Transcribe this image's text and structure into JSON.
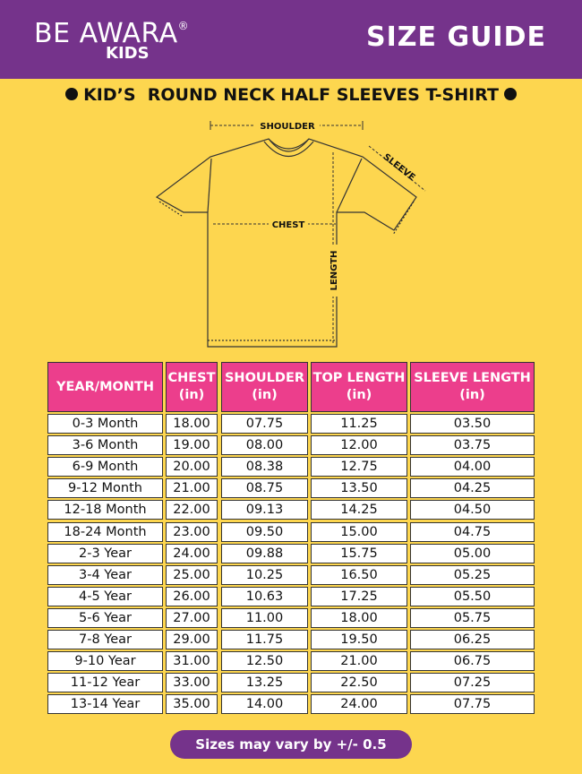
{
  "header": {
    "brand": "BE AWARA",
    "registered": "®",
    "brand_sub": "KIDS",
    "title": "SIZE GUIDE"
  },
  "subtitle": "KID’S  ROUND NECK HALF SLEEVES T-SHIRT",
  "diagram": {
    "shoulder": "SHOULDER",
    "sleeve": "SLEEVE",
    "chest": "CHEST",
    "length": "LENGTH"
  },
  "table": {
    "headers": [
      [
        "YEAR/MONTH",
        ""
      ],
      [
        "CHEST",
        "(in)"
      ],
      [
        "SHOULDER",
        "(in)"
      ],
      [
        "TOP LENGTH",
        "(in)"
      ],
      [
        "SLEEVE LENGTH",
        "(in)"
      ]
    ],
    "rows": [
      [
        "0-3 Month",
        "18.00",
        "07.75",
        "11.25",
        "03.50"
      ],
      [
        "3-6 Month",
        "19.00",
        "08.00",
        "12.00",
        "03.75"
      ],
      [
        "6-9 Month",
        "20.00",
        "08.38",
        "12.75",
        "04.00"
      ],
      [
        "9-12 Month",
        "21.00",
        "08.75",
        "13.50",
        "04.25"
      ],
      [
        "12-18 Month",
        "22.00",
        "09.13",
        "14.25",
        "04.50"
      ],
      [
        "18-24 Month",
        "23.00",
        "09.50",
        "15.00",
        "04.75"
      ],
      [
        "2-3 Year",
        "24.00",
        "09.88",
        "15.75",
        "05.00"
      ],
      [
        "3-4 Year",
        "25.00",
        "10.25",
        "16.50",
        "05.25"
      ],
      [
        "4-5 Year",
        "26.00",
        "10.63",
        "17.25",
        "05.50"
      ],
      [
        "5-6 Year",
        "27.00",
        "11.00",
        "18.00",
        "05.75"
      ],
      [
        "7-8 Year",
        "29.00",
        "11.75",
        "19.50",
        "06.25"
      ],
      [
        "9-10 Year",
        "31.00",
        "12.50",
        "21.00",
        "06.75"
      ],
      [
        "11-12 Year",
        "33.00",
        "13.25",
        "22.50",
        "07.25"
      ],
      [
        "13-14 Year",
        "35.00",
        "14.00",
        "24.00",
        "07.75"
      ]
    ]
  },
  "note": "Sizes may vary by +/- 0.5",
  "colors": {
    "header_bg": "#75338b",
    "page_bg": "#fdd64f",
    "table_header": "#ec3e8c"
  }
}
